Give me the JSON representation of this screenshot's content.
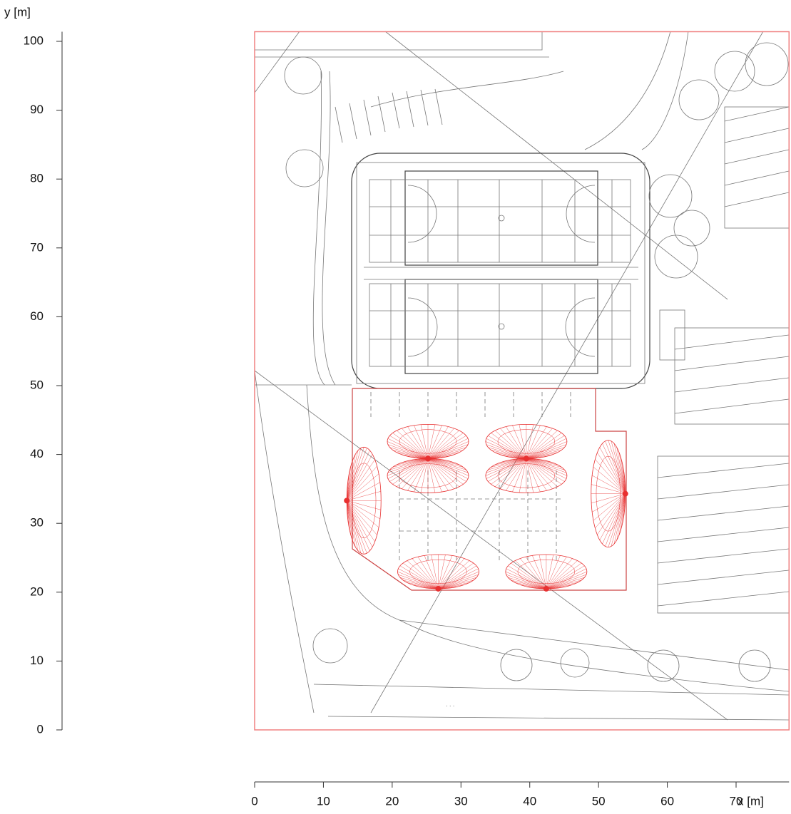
{
  "chart_data": {
    "type": "plan",
    "x_label": "x [m]",
    "y_label": "y [m]",
    "xlim": [
      0,
      77.7
    ],
    "ylim": [
      0,
      101.4
    ],
    "xticks": [
      0,
      10,
      20,
      30,
      40,
      50,
      60,
      70
    ],
    "yticks": [
      0,
      10,
      20,
      30,
      40,
      50,
      60,
      70,
      80,
      90,
      100
    ],
    "frame_color": "#f08080",
    "luminaires": {
      "color": "#e83030",
      "x": [
        25.2,
        39.5,
        13.4,
        53.9,
        26.7,
        42.4
      ],
      "y": [
        39.4,
        39.4,
        33.3,
        34.3,
        20.5,
        20.5
      ]
    }
  }
}
